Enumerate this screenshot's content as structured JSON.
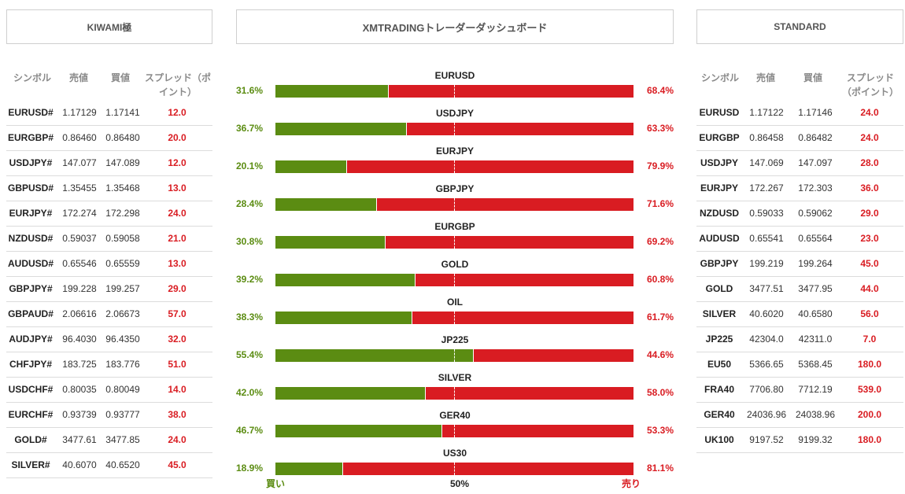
{
  "left": {
    "title": "KIWAMI極",
    "columns": {
      "symbol": "シンボル",
      "bid": "売値",
      "ask": "買値",
      "spread": "スプレッド（ポイント）"
    },
    "rows": [
      {
        "symbol": "EURUSD#",
        "bid": "1.17129",
        "ask": "1.17141",
        "spread": "12.0"
      },
      {
        "symbol": "EURGBP#",
        "bid": "0.86460",
        "ask": "0.86480",
        "spread": "20.0"
      },
      {
        "symbol": "USDJPY#",
        "bid": "147.077",
        "ask": "147.089",
        "spread": "12.0"
      },
      {
        "symbol": "GBPUSD#",
        "bid": "1.35455",
        "ask": "1.35468",
        "spread": "13.0"
      },
      {
        "symbol": "EURJPY#",
        "bid": "172.274",
        "ask": "172.298",
        "spread": "24.0"
      },
      {
        "symbol": "NZDUSD#",
        "bid": "0.59037",
        "ask": "0.59058",
        "spread": "21.0"
      },
      {
        "symbol": "AUDUSD#",
        "bid": "0.65546",
        "ask": "0.65559",
        "spread": "13.0"
      },
      {
        "symbol": "GBPJPY#",
        "bid": "199.228",
        "ask": "199.257",
        "spread": "29.0"
      },
      {
        "symbol": "GBPAUD#",
        "bid": "2.06616",
        "ask": "2.06673",
        "spread": "57.0"
      },
      {
        "symbol": "AUDJPY#",
        "bid": "96.4030",
        "ask": "96.4350",
        "spread": "32.0"
      },
      {
        "symbol": "CHFJPY#",
        "bid": "183.725",
        "ask": "183.776",
        "spread": "51.0"
      },
      {
        "symbol": "USDCHF#",
        "bid": "0.80035",
        "ask": "0.80049",
        "spread": "14.0"
      },
      {
        "symbol": "EURCHF#",
        "bid": "0.93739",
        "ask": "0.93777",
        "spread": "38.0"
      },
      {
        "symbol": "GOLD#",
        "bid": "3477.61",
        "ask": "3477.85",
        "spread": "24.0"
      },
      {
        "symbol": "SILVER#",
        "bid": "40.6070",
        "ask": "40.6520",
        "spread": "45.0"
      }
    ]
  },
  "center": {
    "title": "XMTRADINGトレーダーダッシュボード",
    "rows": [
      {
        "symbol": "EURUSD",
        "buy": "31.6%",
        "sell": "68.4%",
        "buy_value": 31.6
      },
      {
        "symbol": "USDJPY",
        "buy": "36.7%",
        "sell": "63.3%",
        "buy_value": 36.7
      },
      {
        "symbol": "EURJPY",
        "buy": "20.1%",
        "sell": "79.9%",
        "buy_value": 20.1
      },
      {
        "symbol": "GBPJPY",
        "buy": "28.4%",
        "sell": "71.6%",
        "buy_value": 28.4
      },
      {
        "symbol": "EURGBP",
        "buy": "30.8%",
        "sell": "69.2%",
        "buy_value": 30.8
      },
      {
        "symbol": "GOLD",
        "buy": "39.2%",
        "sell": "60.8%",
        "buy_value": 39.2
      },
      {
        "symbol": "OIL",
        "buy": "38.3%",
        "sell": "61.7%",
        "buy_value": 38.3
      },
      {
        "symbol": "JP225",
        "buy": "55.4%",
        "sell": "44.6%",
        "buy_value": 55.4
      },
      {
        "symbol": "SILVER",
        "buy": "42.0%",
        "sell": "58.0%",
        "buy_value": 42.0
      },
      {
        "symbol": "GER40",
        "buy": "46.7%",
        "sell": "53.3%",
        "buy_value": 46.7
      },
      {
        "symbol": "US30",
        "buy": "18.9%",
        "sell": "81.1%",
        "buy_value": 18.9
      }
    ],
    "footer": {
      "buy_label": "買い",
      "mid_label": "50%",
      "sell_label": "売り"
    },
    "colors": {
      "buy": "#5b8c12",
      "sell": "#d91c22"
    }
  },
  "right": {
    "title": "STANDARD",
    "columns": {
      "symbol": "シンボル",
      "bid": "売値",
      "ask": "買値",
      "spread": "スプレッド（ポイント）"
    },
    "rows": [
      {
        "symbol": "EURUSD",
        "bid": "1.17122",
        "ask": "1.17146",
        "spread": "24.0"
      },
      {
        "symbol": "EURGBP",
        "bid": "0.86458",
        "ask": "0.86482",
        "spread": "24.0"
      },
      {
        "symbol": "USDJPY",
        "bid": "147.069",
        "ask": "147.097",
        "spread": "28.0"
      },
      {
        "symbol": "EURJPY",
        "bid": "172.267",
        "ask": "172.303",
        "spread": "36.0"
      },
      {
        "symbol": "NZDUSD",
        "bid": "0.59033",
        "ask": "0.59062",
        "spread": "29.0"
      },
      {
        "symbol": "AUDUSD",
        "bid": "0.65541",
        "ask": "0.65564",
        "spread": "23.0"
      },
      {
        "symbol": "GBPJPY",
        "bid": "199.219",
        "ask": "199.264",
        "spread": "45.0"
      },
      {
        "symbol": "GOLD",
        "bid": "3477.51",
        "ask": "3477.95",
        "spread": "44.0"
      },
      {
        "symbol": "SILVER",
        "bid": "40.6020",
        "ask": "40.6580",
        "spread": "56.0"
      },
      {
        "symbol": "JP225",
        "bid": "42304.0",
        "ask": "42311.0",
        "spread": "7.0"
      },
      {
        "symbol": "EU50",
        "bid": "5366.65",
        "ask": "5368.45",
        "spread": "180.0"
      },
      {
        "symbol": "FRA40",
        "bid": "7706.80",
        "ask": "7712.19",
        "spread": "539.0"
      },
      {
        "symbol": "GER40",
        "bid": "24036.96",
        "ask": "24038.96",
        "spread": "200.0"
      },
      {
        "symbol": "UK100",
        "bid": "9197.52",
        "ask": "9199.32",
        "spread": "180.0"
      }
    ]
  }
}
